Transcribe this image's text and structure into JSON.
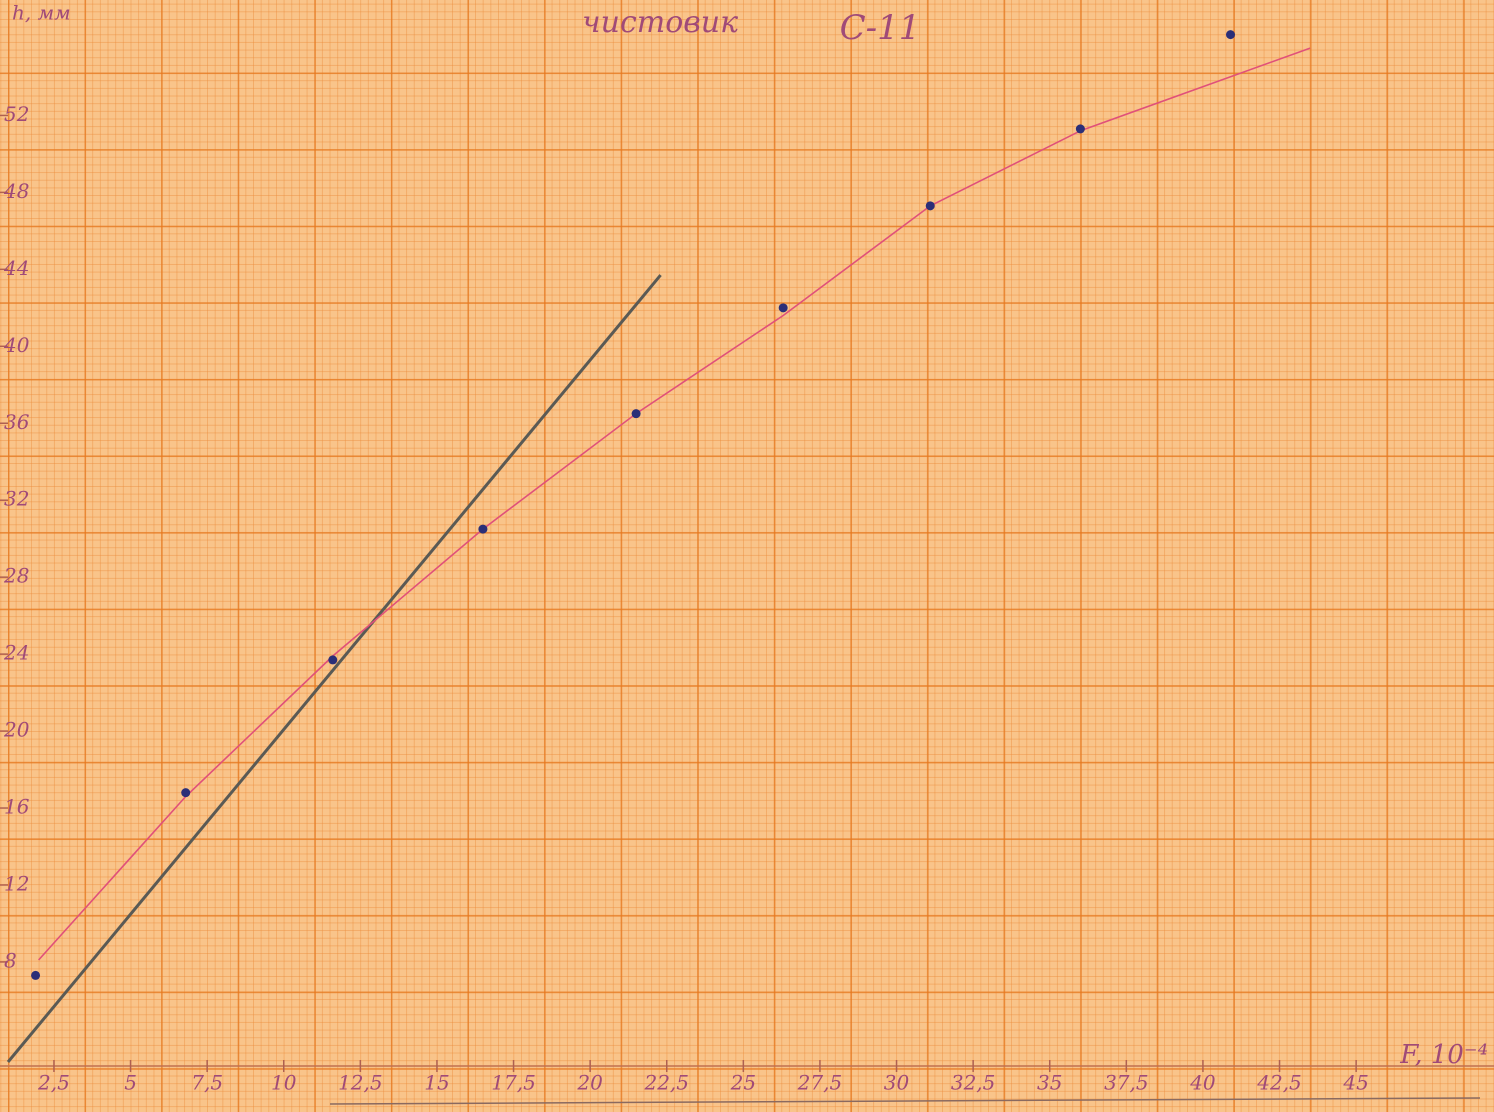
{
  "chart_data": {
    "type": "scatter",
    "title": "чистовик",
    "subtitle": "С-11",
    "y_label": "h, мм",
    "x_label": "F, 10⁻⁴",
    "x": [
      1.9,
      6.8,
      11.6,
      16.5,
      21.5,
      26.3,
      31.1,
      36.0,
      40.9
    ],
    "y": [
      7.3,
      16.8,
      23.7,
      30.5,
      36.5,
      42.0,
      47.3,
      51.3,
      56.2
    ],
    "color": "#2b2f78",
    "curve_x": [
      2.0,
      6.8,
      11.6,
      16.5,
      21.5,
      26.3,
      31.1,
      36.0,
      43.5
    ],
    "curve_y": [
      8.1,
      16.6,
      23.9,
      30.5,
      36.5,
      41.6,
      47.3,
      51.2,
      55.5
    ],
    "curve_color": "#e0507a",
    "line_x": [
      1,
      22.3
    ],
    "line_y": [
      2.8,
      43.7
    ],
    "line_color": "#5a5a55",
    "xlim": [
      1,
      49.5
    ],
    "ylim": [
      0.2,
      58
    ],
    "xticks": [
      {
        "value": 2.5,
        "label": "2,5"
      },
      5,
      {
        "value": 7.5,
        "label": "7,5"
      },
      10,
      {
        "value": 12.5,
        "label": "12,5"
      },
      15,
      {
        "value": 17.5,
        "label": "17,5"
      },
      20,
      {
        "value": 22.5,
        "label": "22,5"
      },
      25,
      {
        "value": 27.5,
        "label": "27,5"
      },
      30,
      {
        "value": 32.5,
        "label": "32,5"
      },
      35,
      {
        "value": 37.5,
        "label": "37,5"
      },
      40,
      {
        "value": 42.5,
        "label": "42,5"
      },
      45
    ],
    "yticks": [
      8,
      12,
      16,
      20,
      24,
      28,
      32,
      36,
      40,
      44,
      48,
      52
    ],
    "grid": true
  }
}
